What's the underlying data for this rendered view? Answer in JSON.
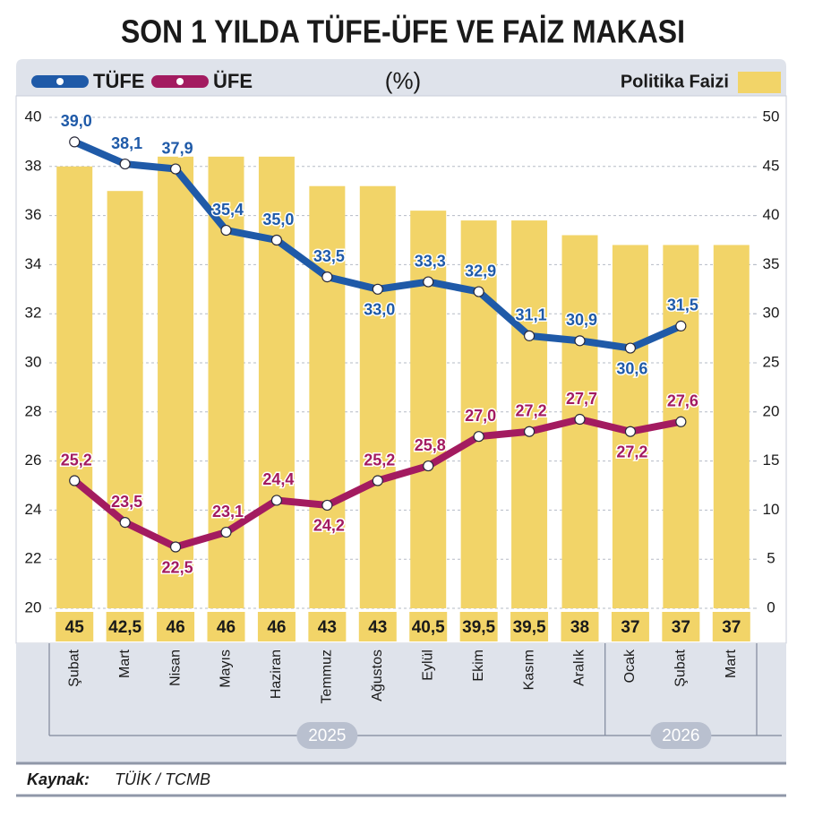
{
  "chart_data": {
    "type": "combo",
    "title": "SON 1 YILDA TÜFE-ÜFE VE FAİZ MAKASI",
    "unit_label": "(%)",
    "categories": [
      "Şubat",
      "Mart",
      "Nisan",
      "Mayıs",
      "Haziran",
      "Temmuz",
      "Ağustos",
      "Eylül",
      "Ekim",
      "Kasım",
      "Aralık",
      "Ocak",
      "Şubat",
      "Mart"
    ],
    "x_groups": [
      {
        "label": "2025",
        "count": 11
      },
      {
        "label": "2026",
        "count": 3
      }
    ],
    "series": [
      {
        "name": "Politika Faizi",
        "type": "bar",
        "axis": "y2",
        "color": "#f2d468",
        "values": [
          45,
          42.5,
          46,
          46,
          46,
          43,
          43,
          40.5,
          39.5,
          39.5,
          38,
          37,
          37,
          37
        ],
        "value_labels": [
          "45",
          "42,5",
          "46",
          "46",
          "46",
          "43",
          "43",
          "40,5",
          "39,5",
          "39,5",
          "38",
          "37",
          "37",
          "37"
        ]
      },
      {
        "name": "TÜFE",
        "type": "line",
        "axis": "y",
        "color": "#1f5aa8",
        "values": [
          39.0,
          38.1,
          37.9,
          35.4,
          35.0,
          33.5,
          33.0,
          33.3,
          32.9,
          31.1,
          30.9,
          30.6,
          31.5,
          null
        ],
        "value_labels": [
          "39,0",
          "38,1",
          "37,9",
          "35,4",
          "35,0",
          "33,5",
          "33,0",
          "33,3",
          "32,9",
          "31,1",
          "30,9",
          "30,6",
          "31,5",
          null
        ]
      },
      {
        "name": "ÜFE",
        "type": "line",
        "axis": "y",
        "color": "#a31b60",
        "values": [
          25.2,
          23.5,
          22.5,
          23.1,
          24.4,
          24.2,
          25.2,
          25.8,
          27.0,
          27.2,
          27.7,
          27.2,
          27.6,
          null
        ],
        "value_labels": [
          "25,2",
          "23,5",
          "22,5",
          "23,1",
          "24,4",
          "24,2",
          "25,2",
          "25,8",
          "27,0",
          "27,2",
          "27,7",
          "27,2",
          "27,6",
          null
        ]
      }
    ],
    "ylim": [
      20,
      40
    ],
    "yticks": [
      20,
      22,
      24,
      26,
      28,
      30,
      32,
      34,
      36,
      38,
      40
    ],
    "y2lim": [
      0,
      50
    ],
    "y2ticks": [
      0,
      5,
      10,
      15,
      20,
      25,
      30,
      35,
      40,
      45,
      50
    ],
    "grid": true,
    "source_label": "Kaynak:",
    "source": "TÜİK / TCMB"
  }
}
